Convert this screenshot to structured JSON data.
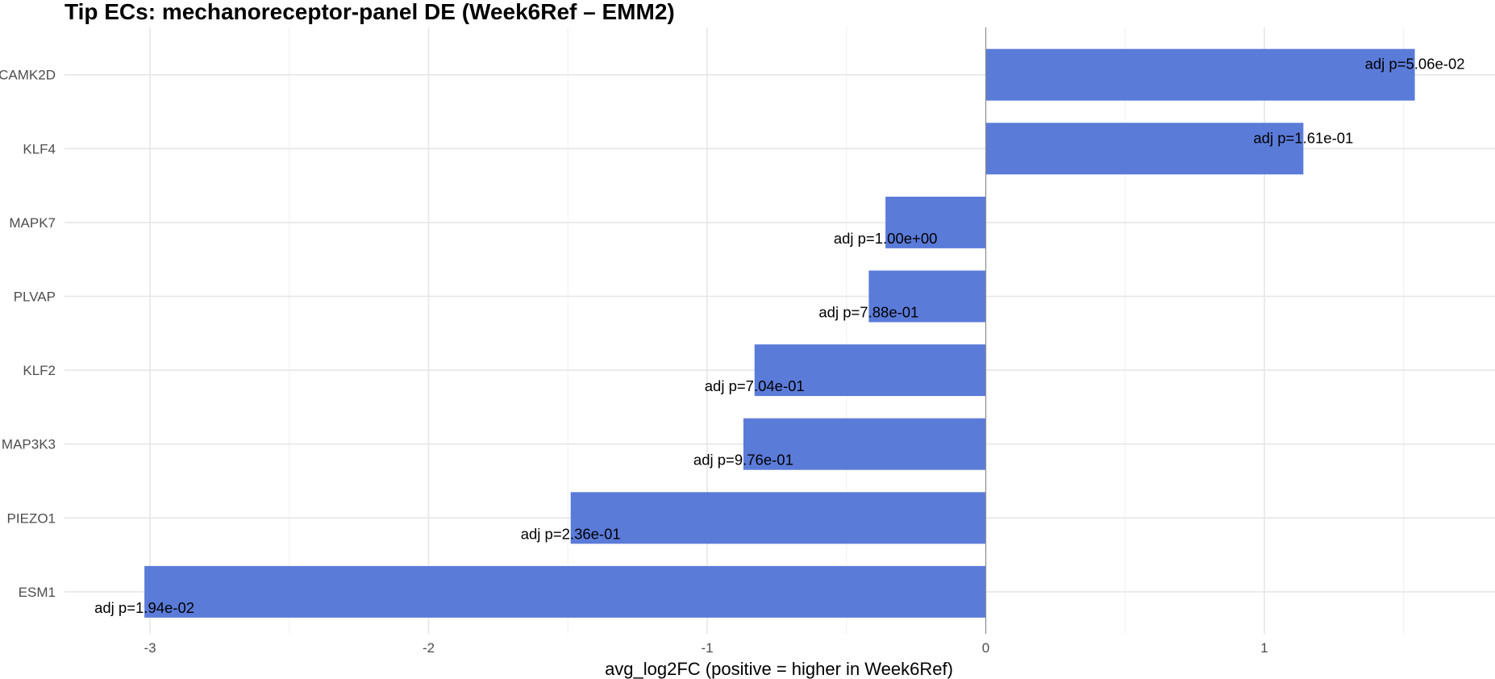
{
  "chart_data": {
    "type": "bar",
    "orientation": "horizontal",
    "title": "Tip ECs: mechanoreceptor-panel DE (Week6Ref – EMM2)",
    "xlabel": "avg_log2FC (positive = higher in Week6Ref)",
    "ylabel": "",
    "categories": [
      "CAMK2D",
      "KLF4",
      "MAPK7",
      "PLVAP",
      "KLF2",
      "MAP3K3",
      "PIEZO1",
      "ESM1"
    ],
    "values": [
      1.54,
      1.14,
      -0.36,
      -0.42,
      -0.83,
      -0.87,
      -1.49,
      -3.02
    ],
    "labels": [
      "adj p=5.06e-02",
      "adj p=1.61e-01",
      "adj p=1.00e+00",
      "adj p=7.88e-01",
      "adj p=7.04e-01",
      "adj p=9.76e-01",
      "adj p=2.36e-01",
      "adj p=1.94e-02"
    ],
    "xticks": [
      -3,
      -2,
      -1,
      0,
      1
    ],
    "xlim": [
      -3.3,
      1.84
    ],
    "grid": true,
    "legend": "none",
    "bar_color": "#5B7BD9"
  }
}
